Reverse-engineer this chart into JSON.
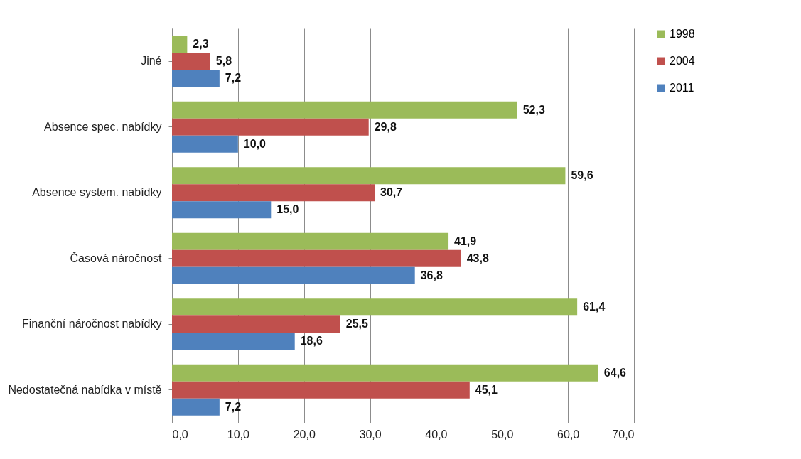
{
  "chart_data": {
    "type": "bar",
    "orientation": "horizontal",
    "categories": [
      "Jiné",
      "Absence spec. nabídky",
      "Absence system. nabídky",
      "Časová náročnost",
      "Finanční náročnost nabídky",
      "Nedostatečná nabídka v místě"
    ],
    "series": [
      {
        "name": "1998",
        "color": "#9bbb59",
        "values": [
          2.3,
          52.3,
          59.6,
          41.9,
          61.4,
          64.6
        ],
        "value_labels": [
          "2,3",
          "52,3",
          "59,6",
          "41,9",
          "61,4",
          "64,6"
        ]
      },
      {
        "name": "2004",
        "color": "#c0504d",
        "values": [
          5.8,
          29.8,
          30.7,
          43.8,
          25.5,
          45.1
        ],
        "value_labels": [
          "5,8",
          "29,8",
          "30,7",
          "43,8",
          "25,5",
          "45,1"
        ]
      },
      {
        "name": "2011",
        "color": "#4f81bd",
        "values": [
          7.2,
          10.0,
          15.0,
          36.8,
          18.6,
          7.2
        ],
        "value_labels": [
          "7,2",
          "10,0",
          "15,0",
          "36,8",
          "18,6",
          "7,2"
        ]
      }
    ],
    "xlim": [
      0,
      70
    ],
    "xticks": [
      {
        "value": 0,
        "label": "0,0"
      },
      {
        "value": 10,
        "label": "10,0"
      },
      {
        "value": 20,
        "label": "20,0"
      },
      {
        "value": 30,
        "label": "30,0"
      },
      {
        "value": 40,
        "label": "40,0"
      },
      {
        "value": 50,
        "label": "50,0"
      },
      {
        "value": 60,
        "label": "60,0"
      },
      {
        "value": 70,
        "label": "70,0"
      }
    ],
    "grid": "x",
    "legend": "right"
  }
}
